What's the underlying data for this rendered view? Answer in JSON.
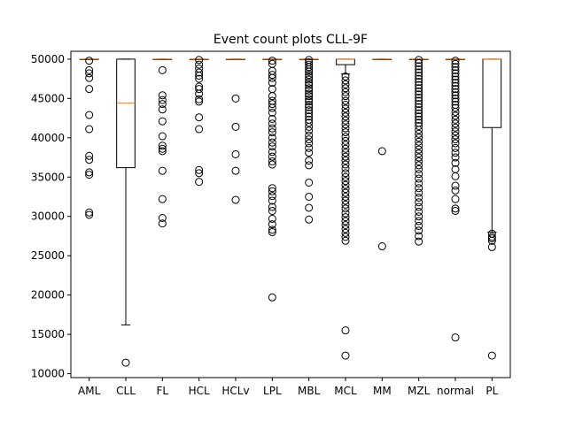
{
  "chart_data": {
    "type": "box",
    "title": "Event count plots CLL-9F",
    "xlabel": "",
    "ylabel": "",
    "ylim": [
      9500,
      51000
    ],
    "yticks": [
      10000,
      15000,
      20000,
      25000,
      30000,
      35000,
      40000,
      45000,
      50000
    ],
    "grid": false,
    "categories": [
      "AML",
      "CLL",
      "FL",
      "HCL",
      "HCLv",
      "LPL",
      "MBL",
      "MCL",
      "MM",
      "MZL",
      "normal",
      "PL"
    ],
    "boxes": [
      {
        "q1": 50000,
        "median": 50000,
        "q3": 50000,
        "whisker_low": 50000,
        "whisker_high": 50000,
        "outliers": [
          49800,
          48600,
          48200,
          47600,
          46200,
          42900,
          41100,
          37700,
          37200,
          35600,
          35300,
          30500,
          30200
        ]
      },
      {
        "q1": 36200,
        "median": 44400,
        "q3": 50000,
        "whisker_low": 16200,
        "whisker_high": 50000,
        "outliers": [
          11400
        ]
      },
      {
        "q1": 50000,
        "median": 50000,
        "q3": 50000,
        "whisker_low": 50000,
        "whisker_high": 50000,
        "outliers": [
          48600,
          45400,
          44800,
          44300,
          43600,
          42100,
          40200,
          39000,
          38600,
          38300,
          35800,
          32200,
          29800,
          29100
        ]
      },
      {
        "q1": 50000,
        "median": 50000,
        "q3": 50000,
        "whisker_low": 50000,
        "whisker_high": 50000,
        "outliers": [
          49900,
          49300,
          48800,
          48300,
          47900,
          47500,
          46500,
          46200,
          45600,
          44900,
          44600,
          42600,
          41100,
          35900,
          35500,
          34400
        ]
      },
      {
        "q1": 50000,
        "median": 50000,
        "q3": 50000,
        "whisker_low": 50000,
        "whisker_high": 50000,
        "outliers": [
          45000,
          41400,
          37900,
          35800,
          32100
        ]
      },
      {
        "q1": 50000,
        "median": 50000,
        "q3": 50000,
        "whisker_low": 50000,
        "whisker_high": 50000,
        "outliers": [
          49800,
          49400,
          48500,
          48000,
          47600,
          47000,
          46200,
          45300,
          44700,
          44300,
          43800,
          43200,
          42400,
          41800,
          41200,
          40700,
          40000,
          39400,
          38900,
          38200,
          37600,
          37000,
          36600,
          33600,
          33200,
          32600,
          32000,
          31200,
          30700,
          29700,
          29000,
          28300,
          28000,
          19700
        ]
      },
      {
        "q1": 50000,
        "median": 50000,
        "q3": 50000,
        "whisker_low": 50000,
        "whisker_high": 50000,
        "outliers": [
          49900,
          49600,
          49300,
          49000,
          48700,
          48400,
          48000,
          47700,
          47400,
          47000,
          46700,
          46300,
          46000,
          45600,
          45300,
          44900,
          44600,
          44200,
          43900,
          43500,
          43100,
          42700,
          42300,
          41900,
          41400,
          40900,
          40300,
          39800,
          39300,
          38700,
          38100,
          37100,
          36500,
          34300,
          32500,
          31100,
          29600
        ]
      },
      {
        "q1": 49300,
        "median": 50000,
        "q3": 50000,
        "whisker_low": 48100,
        "whisker_high": 50000,
        "outliers": [
          47800,
          47300,
          46800,
          46300,
          45800,
          45300,
          44700,
          44200,
          43700,
          43200,
          42700,
          42200,
          41700,
          41200,
          40700,
          40100,
          39600,
          39100,
          38600,
          38100,
          37600,
          37100,
          36600,
          36100,
          35500,
          35000,
          34500,
          34000,
          33500,
          33000,
          32500,
          32000,
          31500,
          31000,
          30400,
          29900,
          29400,
          28900,
          28400,
          27900,
          27400,
          26900,
          15500,
          12300
        ]
      },
      {
        "q1": 50000,
        "median": 50000,
        "q3": 50000,
        "whisker_low": 50000,
        "whisker_high": 50000,
        "outliers": [
          38300,
          26200
        ]
      },
      {
        "q1": 50000,
        "median": 50000,
        "q3": 50000,
        "whisker_low": 50000,
        "whisker_high": 50000,
        "outliers": [
          49900,
          49500,
          49100,
          48700,
          48300,
          47900,
          47500,
          47100,
          46700,
          46300,
          45900,
          45500,
          45100,
          44700,
          44300,
          43900,
          43500,
          43100,
          42700,
          42300,
          41900,
          41500,
          41000,
          40500,
          40000,
          39500,
          39000,
          38500,
          38000,
          37500,
          37000,
          36500,
          36000,
          35400,
          34800,
          34200,
          33600,
          33000,
          32400,
          31800,
          31200,
          30600,
          30000,
          29400,
          28800,
          28200,
          27500,
          26800
        ]
      },
      {
        "q1": 50000,
        "median": 50000,
        "q3": 50000,
        "whisker_low": 50000,
        "whisker_high": 50000,
        "outliers": [
          49800,
          49400,
          49000,
          48600,
          48200,
          47800,
          47400,
          47000,
          46600,
          46200,
          45800,
          45400,
          45000,
          44600,
          44200,
          43800,
          43300,
          42800,
          42300,
          41800,
          41300,
          40800,
          40300,
          39800,
          39300,
          38700,
          38100,
          37500,
          36800,
          36000,
          35100,
          33900,
          33300,
          32200,
          31000,
          30700,
          14600
        ]
      },
      {
        "q1": 41300,
        "median": 50000,
        "q3": 50000,
        "whisker_low": 28000,
        "whisker_high": 50000,
        "outliers": [
          27800,
          27400,
          27200,
          26900,
          26100,
          12300
        ]
      }
    ]
  }
}
